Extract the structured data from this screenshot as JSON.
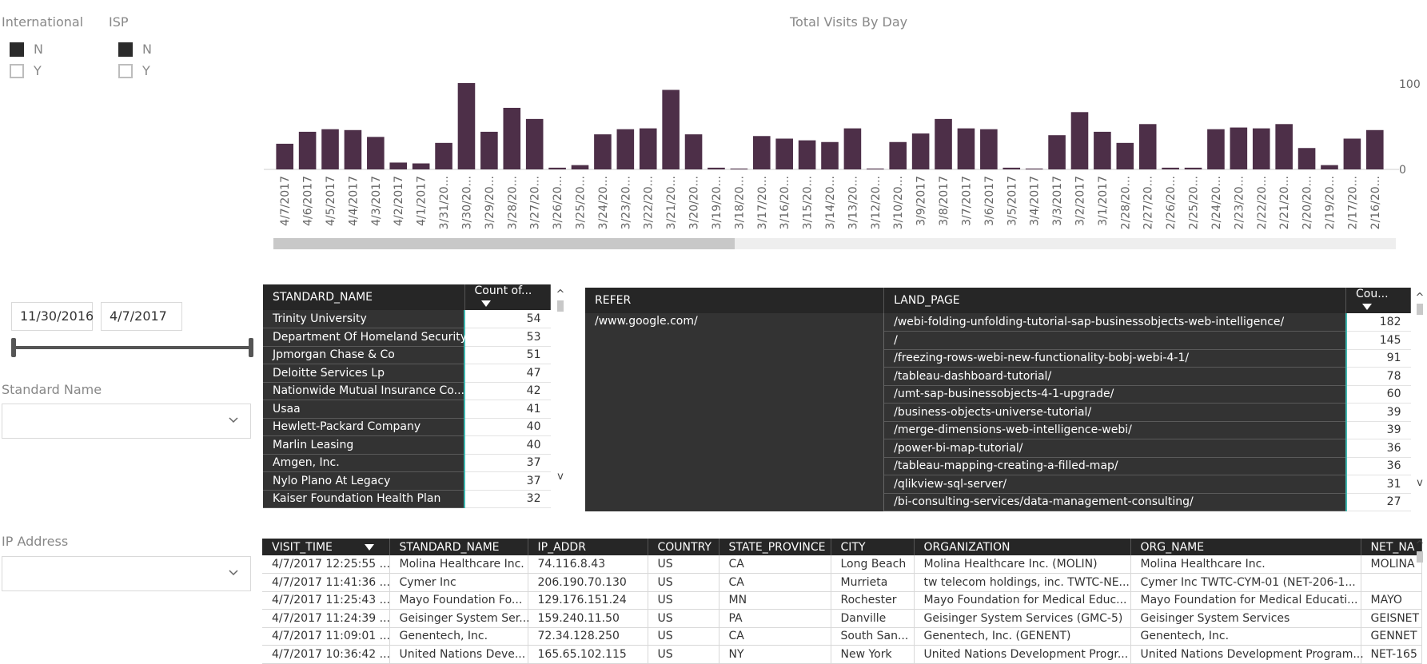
{
  "slicers": {
    "international": {
      "title": "International",
      "options": [
        {
          "label": "N",
          "checked": true
        },
        {
          "label": "Y",
          "checked": false
        }
      ]
    },
    "isp": {
      "title": "ISP",
      "options": [
        {
          "label": "N",
          "checked": true
        },
        {
          "label": "Y",
          "checked": false
        }
      ]
    },
    "date_range": {
      "start": "11/30/2016",
      "end": "4/7/2017"
    },
    "standard_name": {
      "title": "Standard Name",
      "value": ""
    },
    "ip_address": {
      "title": "IP Address",
      "value": ""
    }
  },
  "colors": {
    "bar": "#4d2f48",
    "header": "#262626",
    "cell_dark": "#333333",
    "accent": "#3fb7b0"
  },
  "chart_data": {
    "type": "bar",
    "title": "Total Visits By Day",
    "categories": [
      "4/7/2017",
      "4/6/2017",
      "4/5/2017",
      "4/4/2017",
      "4/3/2017",
      "4/2/2017",
      "4/1/2017",
      "3/31/20...",
      "3/30/20...",
      "3/29/20...",
      "3/28/20...",
      "3/27/20...",
      "3/26/20...",
      "3/25/20...",
      "3/24/20...",
      "3/23/20...",
      "3/22/20...",
      "3/21/20...",
      "3/20/20...",
      "3/19/20...",
      "3/18/20...",
      "3/17/20...",
      "3/16/20...",
      "3/15/20...",
      "3/14/20...",
      "3/13/20...",
      "3/12/20...",
      "3/10/20...",
      "3/9/2017",
      "3/8/2017",
      "3/7/2017",
      "3/6/2017",
      "3/5/2017",
      "3/4/2017",
      "3/3/2017",
      "3/2/2017",
      "3/1/2017",
      "2/28/20...",
      "2/27/20...",
      "2/26/20...",
      "2/25/20...",
      "2/24/20...",
      "2/23/20...",
      "2/22/20...",
      "2/21/20...",
      "2/20/20...",
      "2/19/20...",
      "2/17/20...",
      "2/16/20..."
    ],
    "values": [
      30,
      44,
      47,
      46,
      38,
      8,
      7,
      31,
      101,
      44,
      72,
      59,
      2,
      5,
      41,
      47,
      48,
      93,
      41,
      2,
      1,
      39,
      36,
      34,
      32,
      48,
      1,
      32,
      42,
      59,
      48,
      47,
      2,
      1,
      40,
      67,
      44,
      31,
      53,
      2,
      2,
      47,
      49,
      48,
      53,
      25,
      5,
      36,
      46
    ],
    "ylim": [
      0,
      100
    ],
    "yticks": [
      0,
      100
    ],
    "grid": false,
    "legend": "none"
  },
  "standard_table": {
    "headers": [
      "STANDARD_NAME",
      "Count of..."
    ],
    "rows": [
      {
        "name": "Trinity University",
        "count": "54"
      },
      {
        "name": "Department Of Homeland Security",
        "count": "53"
      },
      {
        "name": "Jpmorgan Chase & Co",
        "count": "51"
      },
      {
        "name": "Deloitte Services Lp",
        "count": "47"
      },
      {
        "name": "Nationwide Mutual Insurance Co...",
        "count": "42"
      },
      {
        "name": "Usaa",
        "count": "41"
      },
      {
        "name": "Hewlett-Packard Company",
        "count": "40"
      },
      {
        "name": "Marlin Leasing",
        "count": "40"
      },
      {
        "name": "Amgen, Inc.",
        "count": "37"
      },
      {
        "name": "Nylo Plano At Legacy",
        "count": "37"
      },
      {
        "name": "Kaiser Foundation Health Plan",
        "count": "32"
      }
    ]
  },
  "refer_table": {
    "headers": [
      "REFER",
      "LAND_PAGE",
      "Cou..."
    ],
    "refer": "/www.google.com/",
    "rows": [
      {
        "page": "/webi-folding-unfolding-tutorial-sap-businessobjects-web-intelligence/",
        "count": "182"
      },
      {
        "page": "/",
        "count": "145"
      },
      {
        "page": "/freezing-rows-webi-new-functionality-bobj-webi-4-1/",
        "count": "91"
      },
      {
        "page": "/tableau-dashboard-tutorial/",
        "count": "78"
      },
      {
        "page": "/umt-sap-businessobjects-4-1-upgrade/",
        "count": "60"
      },
      {
        "page": "/business-objects-universe-tutorial/",
        "count": "39"
      },
      {
        "page": "/merge-dimensions-web-intelligence-webi/",
        "count": "39"
      },
      {
        "page": "/power-bi-map-tutorial/",
        "count": "36"
      },
      {
        "page": "/tableau-mapping-creating-a-filled-map/",
        "count": "36"
      },
      {
        "page": "/qlikview-sql-server/",
        "count": "31"
      },
      {
        "page": "/bi-consulting-services/data-management-consulting/",
        "count": "27"
      }
    ]
  },
  "visits_table": {
    "headers": [
      "VISIT_TIME",
      "STANDARD_NAME",
      "IP_ADDR",
      "COUNTRY",
      "STATE_PROVINCE",
      "CITY",
      "ORGANIZATION",
      "ORG_NAME",
      "NET_NA"
    ],
    "rows": [
      [
        "4/7/2017 12:25:55 ...",
        "Molina Healthcare Inc.",
        "74.116.8.43",
        "US",
        "CA",
        "Long Beach",
        "Molina Healthcare Inc. (MOLIN)",
        "Molina Healthcare Inc.",
        "MOLINA"
      ],
      [
        "4/7/2017 11:41:36 ...",
        "Cymer Inc",
        "206.190.70.130",
        "US",
        "CA",
        "Murrieta",
        "tw telecom holdings, inc. TWTC-NE...",
        "Cymer Inc TWTC-CYM-01 (NET-206-1...",
        ""
      ],
      [
        "4/7/2017 11:25:43 ...",
        "Mayo Foundation Fo...",
        "129.176.151.24",
        "US",
        "MN",
        "Rochester",
        "Mayo Foundation for Medical Educ...",
        "Mayo Foundation for Medical Educati...",
        "MAYO"
      ],
      [
        "4/7/2017 11:24:39 ...",
        "Geisinger System Ser...",
        "159.240.11.50",
        "US",
        "PA",
        "Danville",
        "Geisinger System Services (GMC-5)",
        "Geisinger System Services",
        "GEISNET"
      ],
      [
        "4/7/2017 11:09:01 ...",
        "Genentech, Inc.",
        "72.34.128.250",
        "US",
        "CA",
        "South San...",
        "Genentech, Inc. (GENENT)",
        "Genentech, Inc.",
        "GENNET"
      ],
      [
        "4/7/2017 10:36:42 ...",
        "United Nations Deve...",
        "165.65.102.115",
        "US",
        "NY",
        "New York",
        "United Nations Development Progr...",
        "United Nations Development Program...",
        "NET-165"
      ]
    ]
  }
}
